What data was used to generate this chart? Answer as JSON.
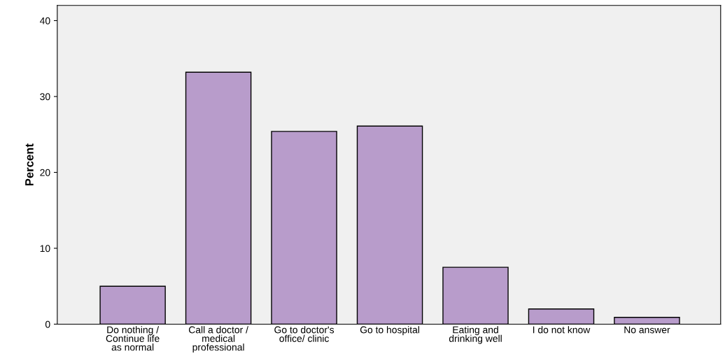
{
  "chart_data": {
    "type": "bar",
    "ylabel": "Percent",
    "categories": [
      "Do nothing /\nContinue life\nas normal",
      "Call a doctor /\nmedical\nprofessional",
      "Go to doctor's\noffice/ clinic",
      "Go to hospital",
      "Eating and\ndrinking well",
      "I do not know",
      "No answer"
    ],
    "values": [
      5.0,
      33.2,
      25.4,
      26.1,
      7.5,
      2.0,
      0.9
    ],
    "color": "#b89ccb",
    "ylim": [
      0,
      42
    ],
    "yticks": [
      0,
      10,
      20,
      30,
      40
    ],
    "grid": false
  }
}
